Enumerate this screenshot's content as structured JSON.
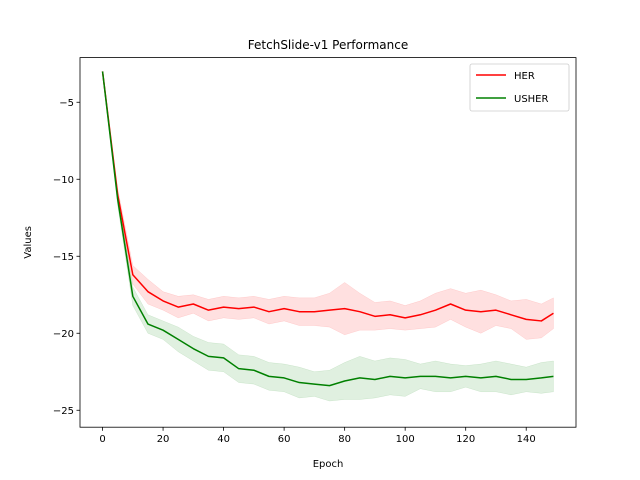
{
  "chart_data": {
    "type": "line",
    "title": "FetchSlide-v1 Performance",
    "xlabel": "Epoch",
    "ylabel": "Values",
    "xlim": [
      -7.45,
      156.45
    ],
    "ylim": [
      -26.1,
      -2.1
    ],
    "xticks": [
      0,
      20,
      40,
      60,
      80,
      100,
      120,
      140
    ],
    "yticks": [
      -5,
      -10,
      -15,
      -20,
      -25
    ],
    "ytick_labels": [
      "−5",
      "−10",
      "−15",
      "−20",
      "−25"
    ],
    "grid": false,
    "legend_position": "top-right",
    "x": [
      0,
      5,
      10,
      15,
      20,
      25,
      30,
      35,
      40,
      45,
      50,
      55,
      60,
      65,
      70,
      75,
      80,
      85,
      90,
      95,
      100,
      105,
      110,
      115,
      120,
      125,
      130,
      135,
      140,
      145,
      149
    ],
    "series": [
      {
        "name": "HER",
        "color": "#ff0000",
        "values": [
          -3.0,
          -11.0,
          -16.2,
          -17.3,
          -17.9,
          -18.3,
          -18.1,
          -18.5,
          -18.3,
          -18.4,
          -18.3,
          -18.6,
          -18.4,
          -18.6,
          -18.6,
          -18.5,
          -18.4,
          -18.6,
          -18.9,
          -18.8,
          -19.0,
          -18.8,
          -18.5,
          -18.1,
          -18.5,
          -18.6,
          -18.5,
          -18.8,
          -19.1,
          -19.2,
          -18.7
        ],
        "upper": [
          -3.0,
          -10.6,
          -15.6,
          -16.5,
          -17.3,
          -17.6,
          -17.5,
          -17.8,
          -17.6,
          -17.7,
          -17.6,
          -17.8,
          -17.6,
          -17.7,
          -17.7,
          -17.4,
          -16.7,
          -17.4,
          -18.0,
          -17.9,
          -18.2,
          -17.9,
          -17.4,
          -17.1,
          -17.4,
          -17.2,
          -17.5,
          -17.9,
          -17.8,
          -18.1,
          -17.7
        ],
        "lower": [
          -3.0,
          -11.4,
          -16.8,
          -18.1,
          -18.5,
          -19.0,
          -18.7,
          -19.2,
          -19.0,
          -19.1,
          -19.0,
          -19.4,
          -19.2,
          -19.5,
          -19.5,
          -19.6,
          -20.1,
          -19.8,
          -19.8,
          -19.7,
          -19.8,
          -19.7,
          -19.6,
          -19.1,
          -19.6,
          -20.0,
          -19.5,
          -19.7,
          -20.4,
          -20.3,
          -19.7
        ]
      },
      {
        "name": "USHER",
        "color": "#008000",
        "values": [
          -3.0,
          -11.3,
          -17.6,
          -19.4,
          -19.8,
          -20.4,
          -21.0,
          -21.5,
          -21.6,
          -22.3,
          -22.4,
          -22.8,
          -22.9,
          -23.2,
          -23.3,
          -23.4,
          -23.1,
          -22.9,
          -23.0,
          -22.8,
          -22.9,
          -22.8,
          -22.8,
          -22.9,
          -22.8,
          -22.9,
          -22.8,
          -23.0,
          -23.0,
          -22.9,
          -22.8
        ],
        "upper": [
          -3.0,
          -10.9,
          -17.0,
          -18.8,
          -19.2,
          -19.6,
          -20.2,
          -20.6,
          -20.7,
          -21.4,
          -21.5,
          -21.9,
          -22.0,
          -22.2,
          -22.5,
          -22.4,
          -21.9,
          -21.5,
          -21.8,
          -21.6,
          -21.7,
          -22.0,
          -21.8,
          -22.0,
          -22.1,
          -22.0,
          -21.8,
          -22.0,
          -22.2,
          -21.9,
          -21.8
        ],
        "lower": [
          -3.0,
          -11.7,
          -18.2,
          -20.0,
          -20.4,
          -21.2,
          -21.8,
          -22.4,
          -22.5,
          -23.2,
          -23.3,
          -23.7,
          -23.8,
          -24.2,
          -24.1,
          -24.4,
          -24.3,
          -24.3,
          -24.2,
          -24.0,
          -24.1,
          -23.6,
          -23.8,
          -23.8,
          -23.5,
          -23.8,
          -23.8,
          -24.0,
          -23.8,
          -23.9,
          -23.8
        ]
      }
    ]
  }
}
